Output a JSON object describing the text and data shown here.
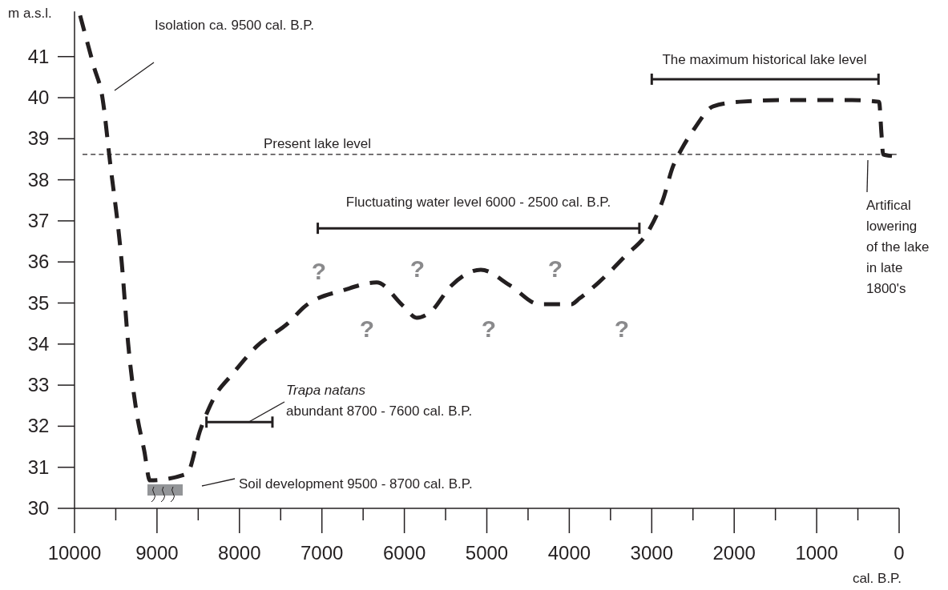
{
  "chart_data": {
    "type": "line",
    "xlabel": "cal. B.P.",
    "ylabel": "m a.s.l.",
    "xlim": [
      10000,
      0
    ],
    "ylim": [
      30,
      42.1
    ],
    "xticks": [
      10000,
      {
        "value": 9500,
        "label": null
      },
      9000,
      {
        "value": 8500,
        "label": null
      },
      8000,
      {
        "value": 7500,
        "label": null
      },
      7000,
      {
        "value": 6500,
        "label": null
      },
      6000,
      {
        "value": 5500,
        "label": null
      },
      5000,
      {
        "value": 4500,
        "label": null
      },
      4000,
      {
        "value": 3500,
        "label": null
      },
      3000,
      {
        "value": 2500,
        "label": null
      },
      2000,
      {
        "value": 1500,
        "label": null
      },
      1000,
      {
        "value": 500,
        "label": null
      },
      0
    ],
    "yticks": [
      30,
      31,
      32,
      33,
      34,
      35,
      36,
      37,
      38,
      39,
      40,
      41
    ],
    "grid": false,
    "series": [
      {
        "color": "#231f20",
        "line_style": "dashed",
        "marker": "none",
        "x": [
          9932,
          9766,
          9660,
          9572,
          9426,
          9349,
          9251,
          9154,
          9086,
          8639,
          8474,
          8309,
          8085,
          7794,
          7405,
          7211,
          6725,
          6336,
          6015,
          5850,
          5685,
          5432,
          5073,
          4713,
          4363,
          3975,
          3877,
          3644,
          3324,
          3032,
          2867,
          2740,
          2643,
          2478,
          2255,
          1934,
          1380,
          573,
          243,
          214,
          194,
          87
        ],
        "values": [
          42.0,
          40.76,
          39.98,
          38.48,
          35.95,
          34.0,
          32.38,
          31.4,
          30.68,
          30.84,
          31.91,
          32.69,
          33.27,
          33.94,
          34.52,
          34.91,
          35.32,
          35.5,
          34.93,
          34.64,
          34.78,
          35.42,
          35.81,
          35.42,
          34.97,
          34.97,
          35.11,
          35.5,
          36.14,
          36.78,
          37.5,
          38.34,
          38.73,
          39.26,
          39.79,
          39.9,
          39.94,
          39.94,
          39.9,
          39.12,
          38.62,
          38.58
        ]
      },
      {
        "color": "#231f20",
        "line_style": "solid",
        "marker": "none",
        "x": [
          7050,
          3150
        ],
        "values": [
          36.82,
          36.82
        ]
      },
      {
        "color": "#231f20",
        "line_style": "solid",
        "marker": "none",
        "x": [
          3000,
          250
        ],
        "values": [
          40.45,
          40.45
        ]
      },
      {
        "color": "#231f20",
        "line_style": "solid",
        "marker": "none",
        "x": [
          8400,
          7600
        ],
        "values": [
          32.1,
          32.1
        ]
      }
    ],
    "ref_lines": [
      {
        "axis": "y",
        "value": 38.62,
        "label": "Present lake level",
        "color": "#231f20",
        "line_style": "dashed"
      }
    ],
    "annotations": [
      "Isolation ca. 9500 cal. B.P.",
      "Fluctuating water level 6000 - 2500 cal. B.P.",
      "The maximum historical lake level",
      {
        "text": "Trapa natans\nabundant 8700 - 7600 cal. B.P.",
        "x": 7890,
        "y": 32.1
      },
      "Soil development 9500 - 8700 cal. B.P.",
      "Artifical\nlowering\nof the lake\nin late\n1800's",
      "?",
      "?",
      "?",
      "?",
      "?",
      "?"
    ]
  }
}
